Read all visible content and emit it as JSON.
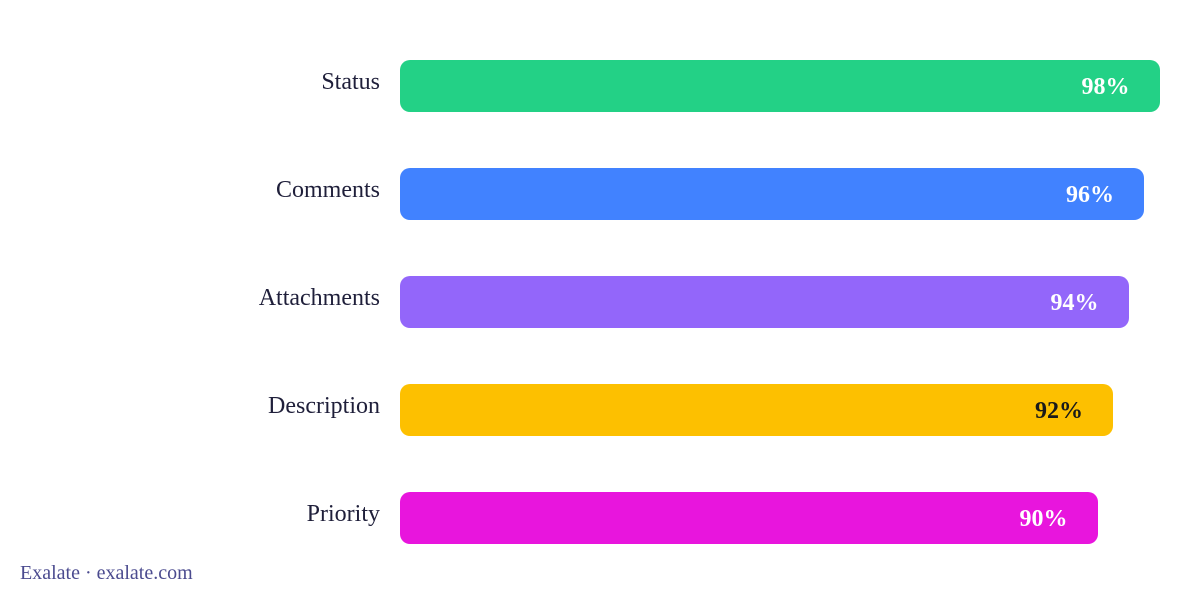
{
  "chart_data": {
    "type": "bar",
    "orientation": "horizontal",
    "categories": [
      "Status",
      "Comments",
      "Attachments",
      "Description",
      "Priority"
    ],
    "values": [
      98,
      96,
      94,
      92,
      90
    ],
    "value_labels": [
      "98%",
      "96%",
      "94%",
      "92%",
      "90%"
    ],
    "unit": "%",
    "xlim": [
      0,
      100
    ],
    "colors": [
      "#23d186",
      "#4182ff",
      "#9366fa",
      "#fdc000",
      "#e815dd"
    ],
    "label_colors": [
      "#ffffff",
      "#ffffff",
      "#ffffff",
      "#1a1a1a",
      "#ffffff"
    ],
    "grid": false,
    "legend": "none"
  },
  "footer": {
    "text": "Exalate · exalate.com"
  }
}
